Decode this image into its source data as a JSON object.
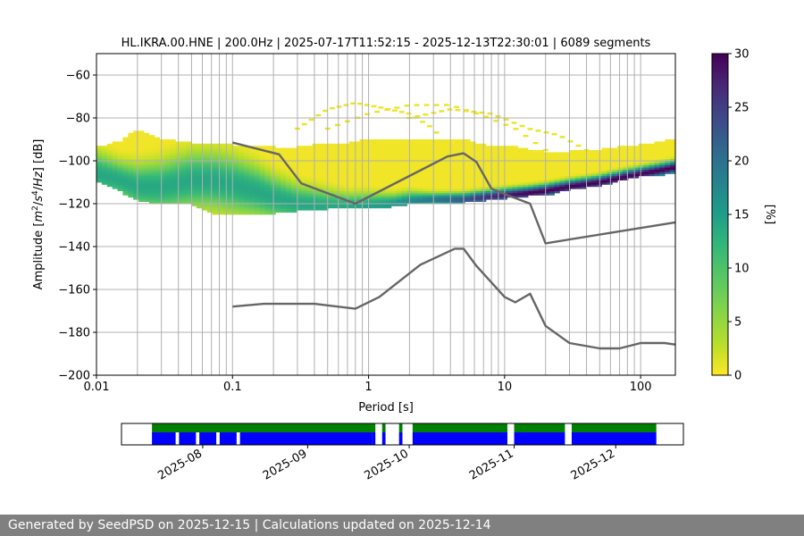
{
  "chart_data": [
    {
      "type": "heatmap",
      "title": "HL.IKRA.00.HNE | 200.0Hz | 2025-07-17T11:52:15 - 2025-12-13T22:30:01 | 6089 segments",
      "xlabel": "Period [s]",
      "ylabel_parts": [
        "Amplitude [",
        "m",
        "2",
        "/",
        "s",
        "4",
        "/",
        "Hz",
        "] [dB]"
      ],
      "xscale": "log",
      "xlim": [
        0.01,
        180
      ],
      "ylim": [
        -200,
        -50
      ],
      "grid": true,
      "xticks": [
        {
          "value": 0.01,
          "label": "0.01"
        },
        {
          "value": 0.1,
          "label": "0.1"
        },
        {
          "value": 1,
          "label": "1"
        },
        {
          "value": 10,
          "label": "10"
        },
        {
          "value": 100,
          "label": "100"
        }
      ],
      "yticks": [
        -60,
        -80,
        -100,
        -120,
        -140,
        -160,
        -180,
        -200
      ],
      "ytick_labels": [
        "−60",
        "−80",
        "−100",
        "−120",
        "−140",
        "−160",
        "−180",
        "−200"
      ],
      "colorbar": {
        "label": "[%]",
        "colormap": "viridis_r",
        "range": [
          0,
          30
        ],
        "ticks": [
          "0",
          "5",
          "10",
          "15",
          "20",
          "25",
          "30"
        ],
        "tick_values": [
          0,
          5,
          10,
          15,
          20,
          25,
          30
        ]
      },
      "density_band": {
        "description_values": "per-period PSD probability",
        "period": [
          0.01,
          0.015,
          0.02,
          0.03,
          0.05,
          0.07,
          0.1,
          0.15,
          0.2,
          0.3,
          0.5,
          0.7,
          1,
          1.5,
          2,
          3,
          5,
          7,
          10,
          15,
          20,
          30,
          50,
          70,
          100,
          150,
          180
        ],
        "mode_db": [
          -106,
          -109,
          -112,
          -112,
          -109,
          -109,
          -111,
          -114,
          -117,
          -120,
          -121,
          -121,
          -121,
          -120,
          -119,
          -118,
          -118,
          -117,
          -116,
          -115,
          -114,
          -112,
          -110,
          -108,
          -106,
          -104,
          -103
        ],
        "spread_db": [
          7,
          6,
          7,
          8,
          9,
          9,
          9,
          8,
          7,
          6,
          5,
          4,
          4,
          3,
          3,
          2,
          2,
          2,
          2,
          2,
          2,
          2,
          2,
          2,
          2,
          2,
          2
        ],
        "upper_db": [
          -94,
          -91,
          -86,
          -90,
          -92,
          -92,
          -93,
          -93,
          -94,
          -94,
          -92,
          -92,
          -90,
          -90,
          -90,
          -90,
          -90,
          -93,
          -93,
          -95,
          -96,
          -96,
          -95,
          -94,
          -93,
          -91,
          -90
        ],
        "lower_db": [
          -109,
          -114,
          -118,
          -120,
          -120,
          -124,
          -125,
          -125,
          -124,
          -123,
          -122,
          -122,
          -122,
          -121,
          -120,
          -120,
          -119,
          -118,
          -117,
          -116,
          -116,
          -113,
          -111,
          -109,
          -107,
          -106,
          -106
        ],
        "peak_percent": [
          12,
          12,
          12,
          12,
          12,
          12,
          12,
          12,
          12,
          12,
          12,
          12,
          13,
          14,
          16,
          18,
          22,
          26,
          28,
          30,
          30,
          30,
          30,
          30,
          30,
          30,
          30
        ]
      },
      "outlier_arcs": [
        {
          "x": [
            0.3,
            0.5,
            0.8,
            1.2,
            2,
            3,
            4
          ],
          "y": [
            -85,
            -76,
            -73,
            -75,
            -78,
            -85,
            -95
          ]
        },
        {
          "x": [
            0.5,
            1,
            2,
            4,
            7,
            12,
            20
          ],
          "y": [
            -85,
            -78,
            -74,
            -74,
            -79,
            -85,
            -95
          ]
        },
        {
          "x": [
            2,
            4,
            8,
            15,
            25,
            40
          ],
          "y": [
            -80,
            -76,
            -78,
            -85,
            -88,
            -95
          ]
        }
      ],
      "series": [
        {
          "name": "",
          "color": "#666666",
          "x": [
            0.1,
            0.22,
            0.32,
            0.8,
            3.8,
            5,
            6.2,
            8,
            10,
            15.4,
            20,
            180
          ],
          "y": [
            -91.5,
            -97.0,
            -110.5,
            -120.0,
            -98.0,
            -96.5,
            -100.5,
            -113.0,
            -115.5,
            -120.0,
            -138.5,
            -128.7
          ]
        },
        {
          "name": "",
          "color": "#666666",
          "x": [
            0.1,
            0.17,
            0.4,
            0.8,
            1.2,
            2.4,
            4.3,
            5,
            6.2,
            10,
            12,
            15.4,
            20,
            30,
            50,
            70,
            100,
            150,
            180
          ],
          "y": [
            -168.0,
            -166.7,
            -166.7,
            -169.0,
            -163.5,
            -148.5,
            -141.0,
            -141.0,
            -149.0,
            -163.5,
            -166.0,
            -162.0,
            -177.0,
            -185.0,
            -187.5,
            -187.5,
            -185.0,
            -185.0,
            -185.7
          ]
        }
      ]
    },
    {
      "type": "timeline",
      "start": "2025-07-08",
      "end": "2025-12-21",
      "tick_labels": [
        "2025-08",
        "2025-09",
        "2025-10",
        "2025-11",
        "2025-12"
      ],
      "tick_dates": [
        "2025-08-01",
        "2025-09-01",
        "2025-10-01",
        "2025-11-01",
        "2025-12-01"
      ],
      "colors": {
        "available": "#008000",
        "processed": "#0000ff"
      },
      "available_ranges": [
        [
          "2025-07-17",
          "2025-09-21"
        ],
        [
          "2025-09-23",
          "2025-09-24"
        ],
        [
          "2025-09-28",
          "2025-09-29"
        ],
        [
          "2025-10-02",
          "2025-10-30"
        ],
        [
          "2025-11-01",
          "2025-11-16"
        ],
        [
          "2025-11-18",
          "2025-12-13"
        ]
      ],
      "processed_ranges": [
        [
          "2025-07-17",
          "2025-07-24"
        ],
        [
          "2025-07-25",
          "2025-07-30"
        ],
        [
          "2025-07-31",
          "2025-08-05"
        ],
        [
          "2025-08-06",
          "2025-08-11"
        ],
        [
          "2025-08-12",
          "2025-09-20"
        ],
        [
          "2025-09-20",
          "2025-09-21"
        ],
        [
          "2025-09-23",
          "2025-09-24"
        ],
        [
          "2025-09-28",
          "2025-09-29"
        ],
        [
          "2025-10-02",
          "2025-10-30"
        ],
        [
          "2025-11-01",
          "2025-11-16"
        ],
        [
          "2025-11-18",
          "2025-12-13"
        ]
      ]
    }
  ],
  "footer": {
    "text": "Generated by SeedPSD on 2025-12-15 | Calculations updated on 2025-12-14"
  }
}
